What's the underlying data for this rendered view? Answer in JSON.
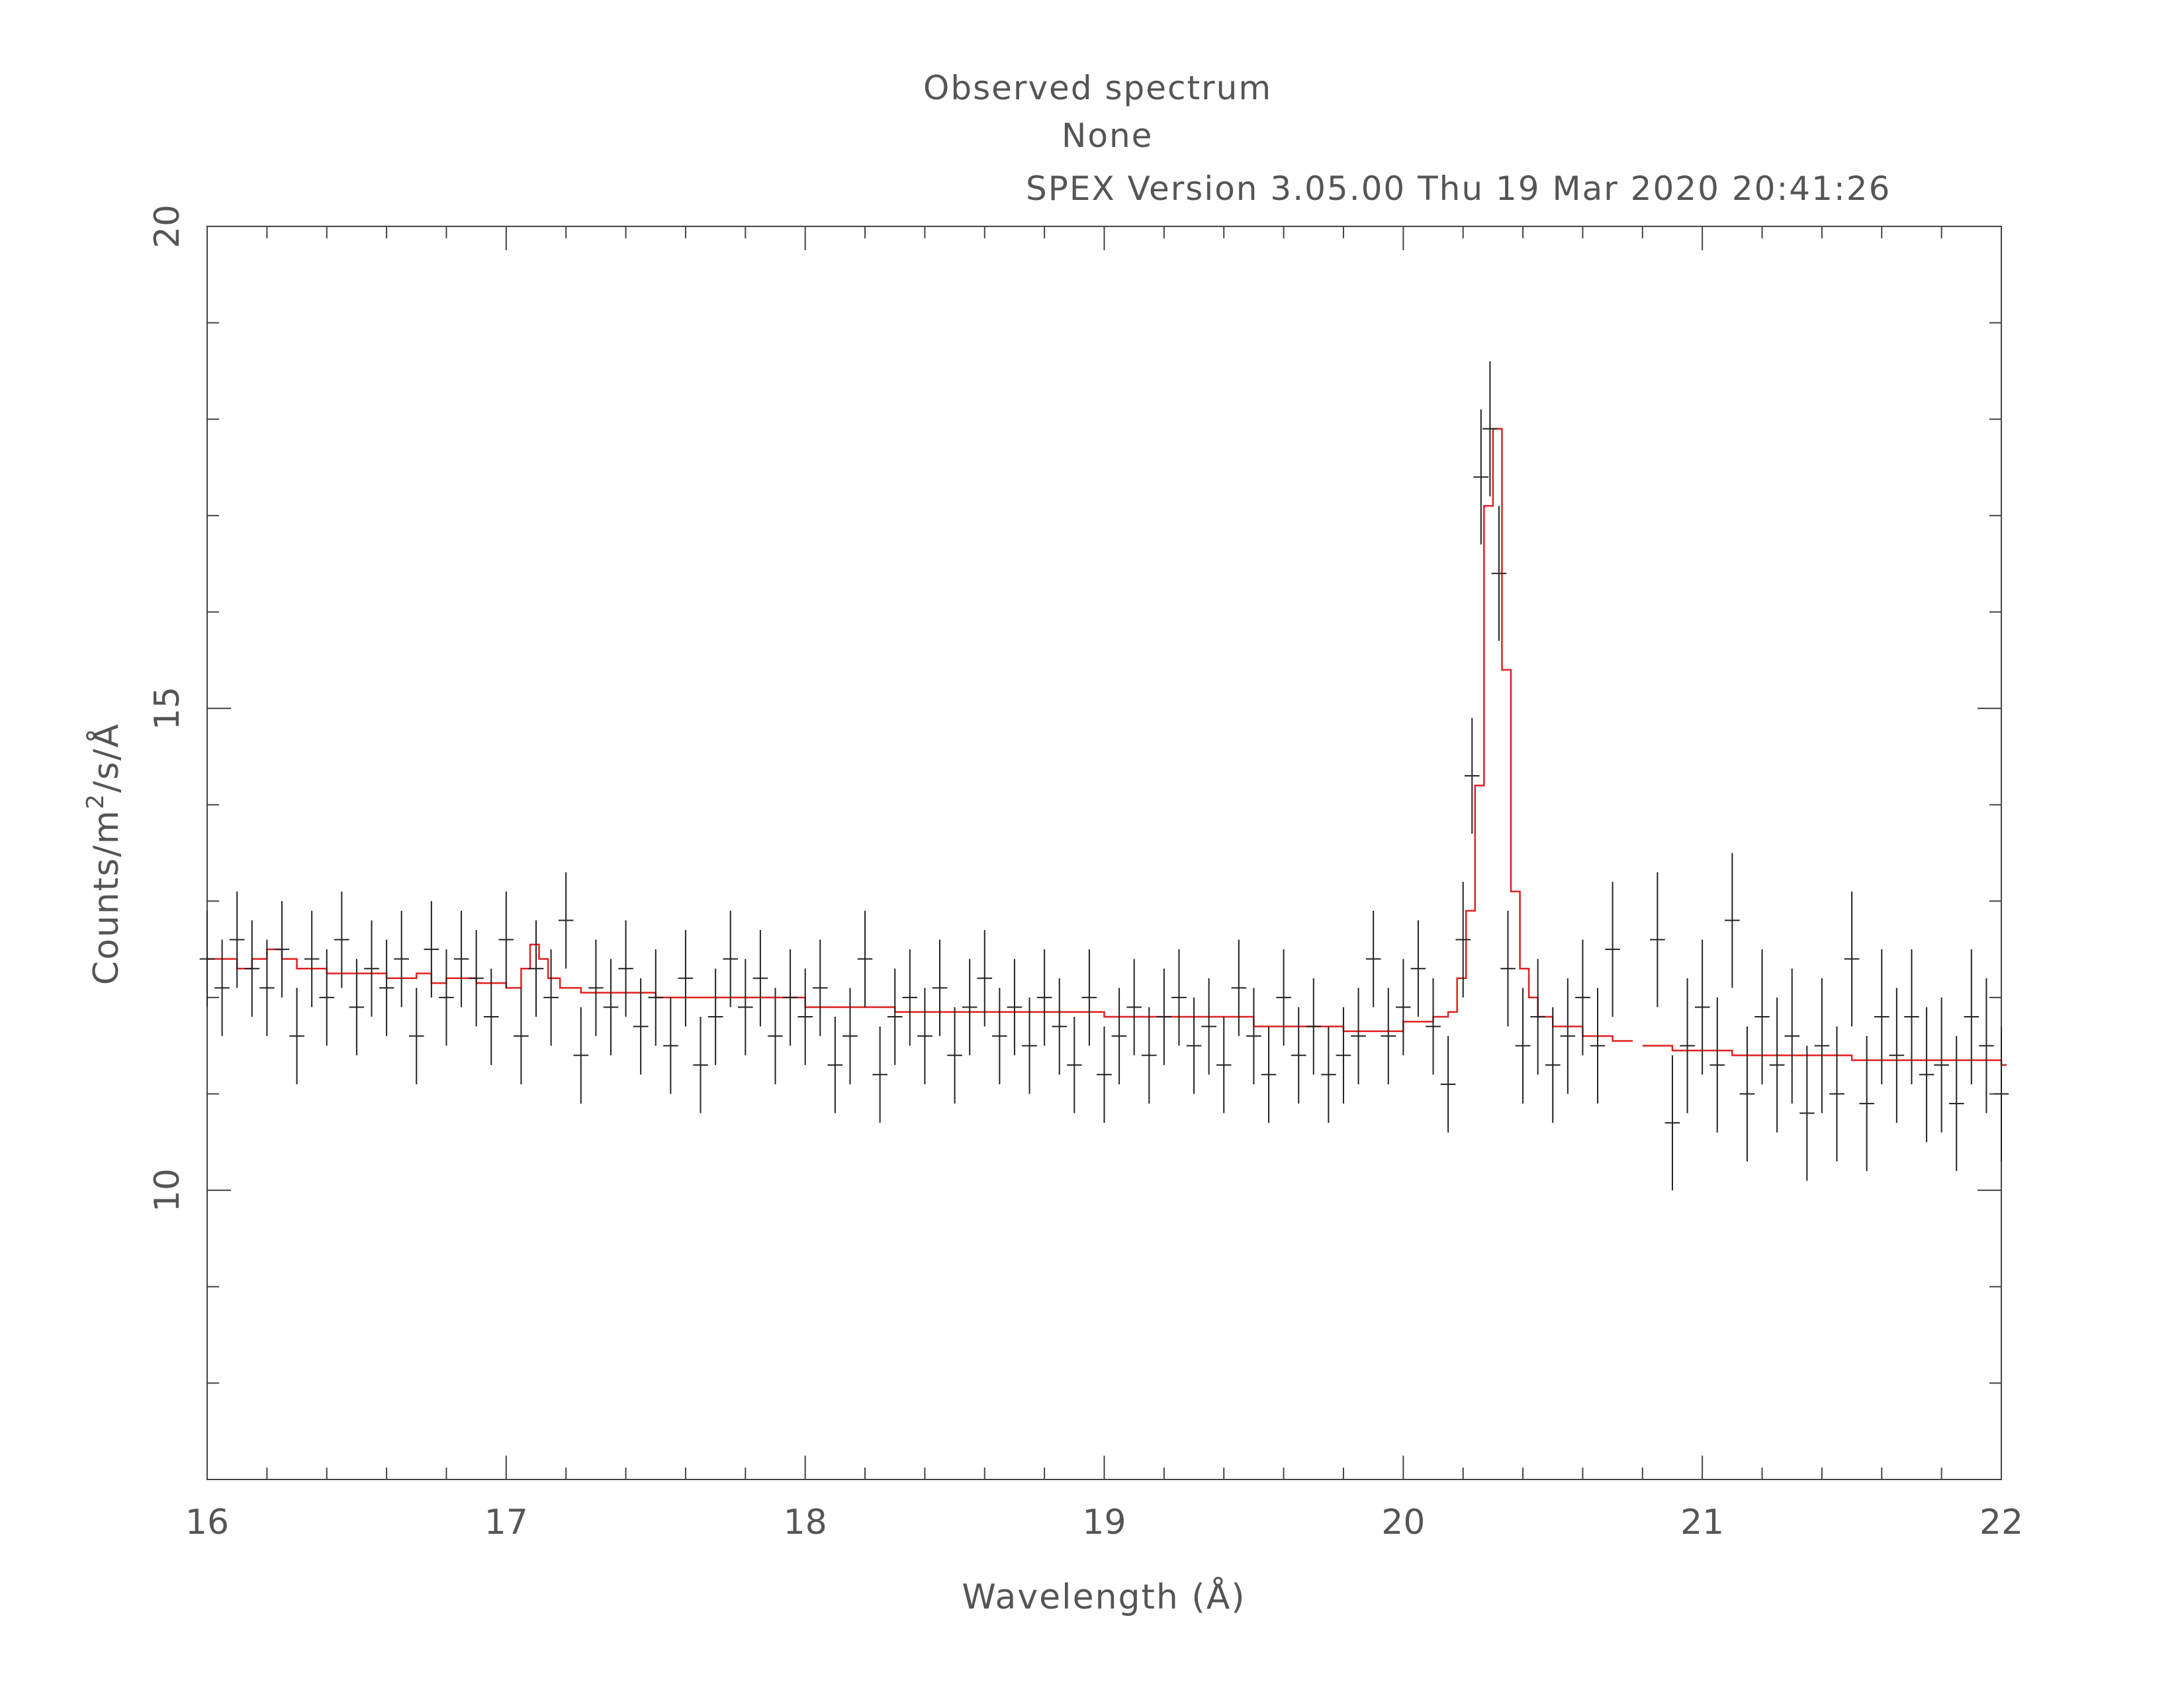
{
  "header": {
    "title": "Observed spectrum",
    "subtitle": "None",
    "version_stamp": "SPEX Version 3.05.00  Thu 19 Mar 2020 20:41:26"
  },
  "colors": {
    "data": "#222222",
    "model": "#e02020",
    "axis": "#444444",
    "text": "#555555"
  },
  "chart_data": {
    "type": "scatter",
    "title": "Observed spectrum",
    "subtitle": "None",
    "xlabel": "Wavelength (Å)",
    "ylabel_parts": [
      "Counts/m",
      "2",
      "/s/Å"
    ],
    "xlim": [
      16,
      22
    ],
    "ylim": [
      7,
      20
    ],
    "x_ticks": [
      "16",
      "17",
      "18",
      "19",
      "20",
      "21",
      "22"
    ],
    "y_ticks": [
      "10",
      "15",
      "20"
    ],
    "x_tick_values": [
      16,
      17,
      18,
      19,
      20,
      21,
      22
    ],
    "y_tick_values": [
      10,
      15,
      20
    ],
    "grid": false,
    "series": [
      {
        "role": "observed",
        "x": [
          16.0,
          16.05,
          16.1,
          16.15,
          16.2,
          16.25,
          16.3,
          16.35,
          16.4,
          16.45,
          16.5,
          16.55,
          16.6,
          16.65,
          16.7,
          16.75,
          16.8,
          16.85,
          16.9,
          16.95,
          17.0,
          17.05,
          17.1,
          17.15,
          17.2,
          17.25,
          17.3,
          17.35,
          17.4,
          17.45,
          17.5,
          17.55,
          17.6,
          17.65,
          17.7,
          17.75,
          17.8,
          17.85,
          17.9,
          17.95,
          18.0,
          18.05,
          18.1,
          18.15,
          18.2,
          18.25,
          18.3,
          18.35,
          18.4,
          18.45,
          18.5,
          18.55,
          18.6,
          18.65,
          18.7,
          18.75,
          18.8,
          18.85,
          18.9,
          18.95,
          19.0,
          19.05,
          19.1,
          19.15,
          19.2,
          19.25,
          19.3,
          19.35,
          19.4,
          19.45,
          19.5,
          19.55,
          19.6,
          19.65,
          19.7,
          19.75,
          19.8,
          19.85,
          19.9,
          19.95,
          20.0,
          20.05,
          20.1,
          20.15,
          20.2,
          20.23,
          20.26,
          20.29,
          20.32,
          20.35,
          20.4,
          20.45,
          20.5,
          20.55,
          20.6,
          20.65,
          20.7,
          20.85,
          20.9,
          20.95,
          21.0,
          21.05,
          21.1,
          21.15,
          21.2,
          21.25,
          21.3,
          21.35,
          21.4,
          21.45,
          21.5,
          21.55,
          21.6,
          21.65,
          21.7,
          21.75,
          21.8,
          21.85,
          21.9,
          21.95,
          22.0
        ],
        "y": [
          12.4,
          12.1,
          12.6,
          12.3,
          12.1,
          12.5,
          11.6,
          12.4,
          12.0,
          12.6,
          11.9,
          12.3,
          12.1,
          12.4,
          11.6,
          12.5,
          12.0,
          12.4,
          12.2,
          11.8,
          12.6,
          11.6,
          12.3,
          12.0,
          12.8,
          11.4,
          12.1,
          11.9,
          12.3,
          11.7,
          12.0,
          11.5,
          12.2,
          11.3,
          11.8,
          12.4,
          11.9,
          12.2,
          11.6,
          12.0,
          11.8,
          12.1,
          11.3,
          11.6,
          12.4,
          11.2,
          11.8,
          12.0,
          11.6,
          12.1,
          11.4,
          11.9,
          12.2,
          11.6,
          11.9,
          11.5,
          12.0,
          11.7,
          11.3,
          12.0,
          11.2,
          11.6,
          11.9,
          11.4,
          11.8,
          12.0,
          11.5,
          11.7,
          11.3,
          12.1,
          11.6,
          11.2,
          12.0,
          11.4,
          11.7,
          11.2,
          11.4,
          11.6,
          12.4,
          11.6,
          11.9,
          12.3,
          11.7,
          11.1,
          12.6,
          14.3,
          17.4,
          17.9,
          16.4,
          12.3,
          11.5,
          11.8,
          11.3,
          11.6,
          12.0,
          11.5,
          12.5,
          12.6,
          10.7,
          11.5,
          11.9,
          11.3,
          12.8,
          11.0,
          11.8,
          11.3,
          11.6,
          10.8,
          11.5,
          11.0,
          12.4,
          10.9,
          11.8,
          11.4,
          11.8,
          11.2,
          11.3,
          10.9,
          11.8,
          11.5,
          11.0
        ],
        "err": [
          0.5,
          0.5,
          0.5,
          0.5,
          0.5,
          0.5,
          0.5,
          0.5,
          0.5,
          0.5,
          0.5,
          0.5,
          0.5,
          0.5,
          0.5,
          0.5,
          0.5,
          0.5,
          0.5,
          0.5,
          0.5,
          0.5,
          0.5,
          0.5,
          0.5,
          0.5,
          0.5,
          0.5,
          0.5,
          0.5,
          0.5,
          0.5,
          0.5,
          0.5,
          0.5,
          0.5,
          0.5,
          0.5,
          0.5,
          0.5,
          0.5,
          0.5,
          0.5,
          0.5,
          0.5,
          0.5,
          0.5,
          0.5,
          0.5,
          0.5,
          0.5,
          0.5,
          0.5,
          0.5,
          0.5,
          0.5,
          0.5,
          0.5,
          0.5,
          0.5,
          0.5,
          0.5,
          0.5,
          0.5,
          0.5,
          0.5,
          0.5,
          0.5,
          0.5,
          0.5,
          0.5,
          0.5,
          0.5,
          0.5,
          0.5,
          0.5,
          0.5,
          0.5,
          0.5,
          0.5,
          0.5,
          0.5,
          0.5,
          0.5,
          0.6,
          0.6,
          0.7,
          0.7,
          0.7,
          0.6,
          0.6,
          0.6,
          0.6,
          0.6,
          0.6,
          0.6,
          0.7,
          0.7,
          0.7,
          0.7,
          0.7,
          0.7,
          0.7,
          0.7,
          0.7,
          0.7,
          0.7,
          0.7,
          0.7,
          0.7,
          0.7,
          0.7,
          0.7,
          0.7,
          0.7,
          0.7,
          0.7,
          0.7,
          0.7,
          0.7,
          0.7
        ],
        "xerr": 0.025
      },
      {
        "role": "model",
        "type": "step",
        "segments": [
          {
            "x": [
              16.0,
              16.1,
              16.15,
              16.2,
              16.25,
              16.3,
              16.4,
              16.6,
              16.7,
              16.75,
              16.8,
              16.9,
              17.0,
              17.05,
              17.08,
              17.11,
              17.14,
              17.18,
              17.25,
              17.5,
              18.0,
              18.3,
              18.5,
              19.0,
              19.5,
              19.8,
              20.0,
              20.1,
              20.15,
              20.18,
              20.21,
              20.24,
              20.27,
              20.3,
              20.33,
              20.36,
              20.39,
              20.42,
              20.45,
              20.5,
              20.6,
              20.7,
              20.75
            ],
            "y": [
              12.4,
              12.3,
              12.4,
              12.5,
              12.4,
              12.3,
              12.25,
              12.2,
              12.25,
              12.15,
              12.2,
              12.15,
              12.1,
              12.3,
              12.55,
              12.4,
              12.2,
              12.1,
              12.05,
              12.0,
              11.9,
              11.85,
              11.85,
              11.8,
              11.7,
              11.65,
              11.75,
              11.8,
              11.85,
              12.2,
              12.9,
              14.2,
              17.1,
              17.9,
              15.4,
              13.1,
              12.3,
              12.0,
              11.8,
              11.7,
              11.6,
              11.55,
              11.55
            ]
          },
          {
            "x": [
              20.8,
              20.9,
              21.0,
              21.1,
              21.5,
              22.0
            ],
            "y": [
              11.5,
              11.45,
              11.45,
              11.4,
              11.35,
              11.3
            ]
          }
        ]
      }
    ]
  }
}
